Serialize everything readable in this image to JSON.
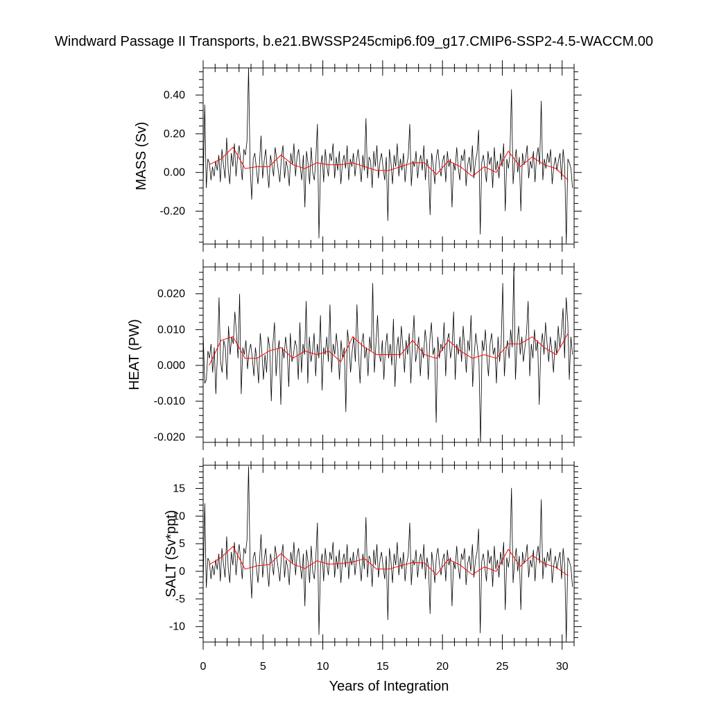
{
  "chart_data": {
    "title": "Windward Passage II Transports, b.e21.BWSSP245cmip6.f09_g17.CMIP6-SSP2-4.5-WACCM.00",
    "xlabel": "Years of Integration",
    "xlim": [
      0,
      31
    ],
    "xticks": [
      0,
      5,
      10,
      15,
      20,
      25,
      30
    ],
    "xtick_labels": [
      "0",
      "5",
      "10",
      "15",
      "20",
      "25",
      "30"
    ],
    "line_colors": {
      "monthly": "#000000",
      "annual": "#ff0000"
    },
    "panels": [
      {
        "type": "line",
        "ylabel": "MASS (Sv)",
        "ylim": [
          -0.37,
          0.54
        ],
        "yticks": [
          -0.2,
          0.0,
          0.2,
          0.4
        ],
        "ytick_labels": [
          "-0.20",
          "0.00",
          "0.20",
          "0.40"
        ],
        "monthly": [
          -0.07,
          0.35,
          -0.08,
          0.07,
          0.05,
          -0.04,
          0.03,
          -0.02,
          0.06,
          0.01,
          0.09,
          -0.05,
          0.12,
          0.04,
          -0.03,
          0.18,
          0.02,
          -0.06,
          0.1,
          0.03,
          0.15,
          -0.02,
          0.08,
          0.14,
          0.05,
          -0.04,
          0.12,
          0.09,
          0.16,
          0.54,
          0.03,
          -0.14,
          0.07,
          0.1,
          0.02,
          -0.06,
          0.05,
          0.19,
          -0.03,
          0.06,
          0.12,
          0.0,
          -0.08,
          0.09,
          0.04,
          -0.02,
          0.13,
          0.07,
          0.01,
          -0.05,
          0.08,
          0.14,
          -0.03,
          0.06,
          0.02,
          -0.07,
          0.1,
          0.04,
          0.15,
          -0.02,
          0.08,
          0.12,
          0.03,
          -0.04,
          0.09,
          -0.18,
          0.11,
          0.05,
          -0.06,
          0.13,
          0.0,
          -0.04,
          0.07,
          0.25,
          -0.34,
          0.03,
          0.09,
          -0.05,
          0.12,
          0.04,
          -0.02,
          0.1,
          0.06,
          0.15,
          -0.03,
          0.08,
          0.01,
          0.11,
          -0.06,
          0.05,
          0.09,
          0.02,
          0.14,
          -0.04,
          0.07,
          0.03,
          0.1,
          -0.02,
          0.06,
          0.12,
          0.04,
          -0.05,
          0.09,
          0.01,
          0.28,
          -0.03,
          0.08,
          0.06,
          -0.08,
          0.11,
          0.03,
          0.14,
          -0.03,
          0.06,
          0.1,
          0.02,
          -0.04,
          0.08,
          -0.25,
          0.12,
          0.05,
          -0.06,
          0.09,
          0.03,
          0.15,
          -0.02,
          0.07,
          0.01,
          0.1,
          -0.05,
          0.04,
          0.08,
          0.25,
          -0.07,
          0.06,
          0.03,
          0.11,
          -0.03,
          0.05,
          0.09,
          0.01,
          0.14,
          -0.04,
          0.07,
          0.02,
          -0.22,
          0.1,
          0.04,
          -0.06,
          0.08,
          0.12,
          0.03,
          -0.02,
          0.06,
          0.09,
          -0.05,
          0.11,
          0.03,
          0.07,
          -0.18,
          0.05,
          0.01,
          0.13,
          0.02,
          -0.04,
          0.09,
          0.06,
          0.12,
          -0.07,
          0.04,
          0.08,
          0.0,
          0.14,
          -0.03,
          0.06,
          0.1,
          0.22,
          -0.32,
          0.05,
          0.09,
          0.02,
          -0.05,
          0.11,
          0.04,
          0.08,
          -0.08,
          0.13,
          0.01,
          0.06,
          -0.03,
          0.1,
          0.03,
          0.15,
          -0.2,
          0.07,
          0.02,
          0.09,
          0.43,
          -0.06,
          0.05,
          0.12,
          0.0,
          0.08,
          -0.2,
          0.1,
          0.04,
          0.07,
          0.14,
          -0.03,
          0.06,
          0.02,
          0.11,
          -0.05,
          0.08,
          0.13,
          0.04,
          0.37,
          -0.04,
          0.07,
          0.02,
          0.1,
          0.05,
          0.12,
          -0.06,
          0.03,
          0.08,
          0.01,
          0.06,
          0.1,
          -0.04,
          0.12,
          0.03,
          -0.37,
          0.07,
          0.05,
          0.02,
          -0.08
        ],
        "annual": [
          [
            0.5,
            0.04
          ],
          [
            1.5,
            0.07
          ],
          [
            2.5,
            0.13
          ],
          [
            3.5,
            0.02
          ],
          [
            4.5,
            0.03
          ],
          [
            5.5,
            0.03
          ],
          [
            6.5,
            0.09
          ],
          [
            7.5,
            0.04
          ],
          [
            8.5,
            0.02
          ],
          [
            9.5,
            0.05
          ],
          [
            10.5,
            0.04
          ],
          [
            11.5,
            0.04
          ],
          [
            12.5,
            0.05
          ],
          [
            13.5,
            0.03
          ],
          [
            14.5,
            0.01
          ],
          [
            15.5,
            0.01
          ],
          [
            16.5,
            0.03
          ],
          [
            17.5,
            0.05
          ],
          [
            18.5,
            0.05
          ],
          [
            19.5,
            -0.01
          ],
          [
            20.5,
            0.06
          ],
          [
            21.5,
            0.03
          ],
          [
            22.5,
            -0.02
          ],
          [
            23.5,
            0.03
          ],
          [
            24.5,
            0.0
          ],
          [
            25.5,
            0.11
          ],
          [
            26.5,
            0.03
          ],
          [
            27.5,
            0.08
          ],
          [
            28.5,
            0.04
          ],
          [
            29.5,
            0.02
          ],
          [
            30.5,
            -0.04
          ]
        ]
      },
      {
        "type": "line",
        "ylabel": "HEAT (PW)",
        "ylim": [
          -0.0215,
          0.0275
        ],
        "yticks": [
          -0.02,
          -0.01,
          0.0,
          0.01,
          0.02
        ],
        "ytick_labels": [
          "-0.020",
          "-0.010",
          "0.000",
          "0.010",
          "0.020"
        ],
        "monthly": [
          0.009,
          -0.005,
          -0.004,
          0.004,
          0.002,
          0.006,
          -0.002,
          0.005,
          -0.008,
          0.003,
          0.019,
          0.001,
          -0.002,
          0.007,
          0.005,
          -0.004,
          0.011,
          0.003,
          0.008,
          0.006,
          0.015,
          0.009,
          0.002,
          0.02,
          -0.008,
          0.005,
          0.003,
          0.007,
          -0.001,
          0.004,
          0.006,
          0.002,
          -0.003,
          0.005,
          0.001,
          -0.005,
          0.009,
          0.004,
          -0.004,
          0.003,
          -0.002,
          0.008,
          0.005,
          -0.01,
          0.006,
          0.012,
          -0.003,
          0.004,
          0.007,
          -0.011,
          0.005,
          0.002,
          0.008,
          0.004,
          -0.006,
          0.009,
          0.001,
          0.003,
          0.007,
          0.005,
          -0.004,
          0.012,
          -0.002,
          0.006,
          0.003,
          0.018,
          -0.005,
          0.008,
          0.001,
          0.004,
          0.009,
          -0.003,
          0.006,
          0.002,
          0.014,
          -0.007,
          0.005,
          0.003,
          0.008,
          0.001,
          0.017,
          -0.002,
          0.006,
          0.003,
          0.009,
          0.004,
          -0.004,
          0.007,
          0.002,
          0.005,
          -0.013,
          0.01,
          0.006,
          -0.002,
          0.004,
          0.008,
          0.001,
          0.017,
          0.003,
          -0.005,
          0.006,
          0.009,
          0.002,
          0.005,
          -0.003,
          0.008,
          0.004,
          0.023,
          -0.002,
          0.006,
          0.014,
          0.003,
          0.001,
          0.007,
          -0.004,
          0.005,
          0.009,
          0.002,
          0.006,
          0.0,
          0.013,
          -0.006,
          0.004,
          0.008,
          0.002,
          0.011,
          0.005,
          -0.002,
          0.007,
          0.003,
          0.009,
          -0.005,
          0.006,
          0.014,
          0.001,
          0.004,
          0.008,
          -0.003,
          0.005,
          0.002,
          0.01,
          0.006,
          -0.004,
          0.007,
          0.012,
          0.003,
          0.005,
          -0.016,
          0.008,
          0.002,
          0.006,
          0.004,
          0.012,
          -0.003,
          0.007,
          0.009,
          0.002,
          0.005,
          0.015,
          -0.004,
          0.006,
          0.003,
          0.008,
          0.001,
          0.011,
          0.005,
          -0.002,
          0.007,
          0.004,
          0.014,
          -0.006,
          0.003,
          0.009,
          0.005,
          0.001,
          -0.022,
          0.007,
          0.004,
          0.01,
          0.002,
          -0.003,
          0.006,
          0.009,
          0.003,
          0.005,
          -0.005,
          0.008,
          0.001,
          0.006,
          0.023,
          -0.003,
          0.004,
          0.007,
          0.002,
          0.01,
          0.005,
          0.028,
          -0.004,
          0.006,
          0.011,
          0.003,
          0.008,
          0.001,
          0.005,
          0.009,
          0.018,
          -0.003,
          0.006,
          0.002,
          0.01,
          0.004,
          0.007,
          -0.011,
          0.005,
          0.009,
          0.003,
          0.012,
          0.006,
          0.001,
          0.008,
          0.004,
          -0.002,
          0.007,
          0.003,
          0.011,
          0.005,
          0.009,
          0.016,
          0.002,
          0.019,
          0.012,
          -0.004,
          0.008,
          0.003
        ],
        "annual": [
          [
            0.5,
            0.0
          ],
          [
            1.5,
            0.007
          ],
          [
            2.5,
            0.008
          ],
          [
            3.5,
            0.002
          ],
          [
            4.5,
            0.002
          ],
          [
            5.5,
            0.004
          ],
          [
            6.5,
            0.005
          ],
          [
            7.5,
            0.002
          ],
          [
            8.5,
            0.004
          ],
          [
            9.5,
            0.003
          ],
          [
            10.5,
            0.004
          ],
          [
            11.5,
            0.001
          ],
          [
            12.5,
            0.008
          ],
          [
            13.5,
            0.005
          ],
          [
            14.5,
            0.003
          ],
          [
            15.5,
            0.003
          ],
          [
            16.5,
            0.003
          ],
          [
            17.5,
            0.007
          ],
          [
            18.5,
            0.003
          ],
          [
            19.5,
            0.002
          ],
          [
            20.5,
            0.007
          ],
          [
            21.5,
            0.004
          ],
          [
            22.5,
            0.002
          ],
          [
            23.5,
            0.003
          ],
          [
            24.5,
            0.002
          ],
          [
            25.5,
            0.006
          ],
          [
            26.5,
            0.006
          ],
          [
            27.5,
            0.008
          ],
          [
            28.5,
            0.005
          ],
          [
            29.5,
            0.003
          ],
          [
            30.5,
            0.009
          ]
        ]
      },
      {
        "type": "line",
        "ylabel": "SALT (Sv*ppt)",
        "ylim": [
          -12.8,
          19.2
        ],
        "yticks": [
          -10,
          -5,
          0,
          5,
          10,
          15
        ],
        "ytick_labels": [
          "-10",
          "-5",
          "0",
          "5",
          "10",
          "15"
        ],
        "monthly": [
          -2.5,
          12.3,
          -3.0,
          2.4,
          1.8,
          -1.4,
          1.1,
          -0.7,
          2.1,
          0.3,
          3.2,
          -1.8,
          4.2,
          1.4,
          -1.1,
          6.3,
          0.7,
          -2.1,
          3.5,
          1.1,
          5.3,
          -0.7,
          2.8,
          4.9,
          1.8,
          -1.4,
          4.2,
          3.2,
          5.6,
          19.0,
          1.1,
          -4.9,
          2.5,
          3.5,
          0.7,
          -2.1,
          1.8,
          6.7,
          -1.1,
          2.1,
          4.2,
          0.0,
          -2.8,
          3.2,
          1.4,
          -0.7,
          4.6,
          2.5,
          0.4,
          -1.8,
          2.8,
          4.9,
          -1.1,
          2.1,
          0.7,
          -2.5,
          3.5,
          1.4,
          5.3,
          -0.7,
          2.8,
          4.2,
          1.1,
          -1.4,
          3.2,
          -6.3,
          3.9,
          1.8,
          -2.1,
          4.6,
          0.0,
          -1.4,
          2.5,
          8.8,
          -11.5,
          1.1,
          3.2,
          -1.8,
          4.2,
          1.4,
          -0.7,
          3.5,
          2.1,
          5.3,
          -1.1,
          2.8,
          0.4,
          3.9,
          -2.1,
          1.8,
          3.2,
          0.7,
          4.9,
          -1.4,
          2.5,
          1.1,
          3.5,
          -0.7,
          2.1,
          4.2,
          1.4,
          -1.8,
          3.2,
          0.4,
          9.8,
          -1.1,
          2.8,
          2.1,
          -2.8,
          3.9,
          1.1,
          4.9,
          -1.1,
          2.1,
          3.5,
          0.7,
          -1.4,
          2.8,
          -8.8,
          4.2,
          1.8,
          -2.1,
          3.2,
          1.1,
          5.3,
          -0.7,
          2.5,
          0.4,
          3.5,
          -1.8,
          1.4,
          2.8,
          8.8,
          -2.5,
          2.1,
          1.1,
          3.9,
          -1.1,
          1.8,
          3.2,
          0.4,
          4.9,
          -1.4,
          2.5,
          0.7,
          -7.7,
          3.5,
          1.4,
          -2.1,
          2.8,
          4.2,
          1.1,
          -0.7,
          2.1,
          3.2,
          -1.8,
          3.9,
          1.1,
          2.5,
          -6.3,
          1.8,
          0.4,
          4.6,
          0.7,
          -1.4,
          3.2,
          2.1,
          4.2,
          -2.5,
          1.4,
          2.8,
          0.0,
          4.9,
          -1.1,
          2.1,
          3.5,
          7.7,
          -11.2,
          1.8,
          3.2,
          0.7,
          -1.8,
          3.9,
          1.4,
          2.8,
          -2.8,
          4.6,
          0.4,
          2.1,
          -1.1,
          3.5,
          1.1,
          5.3,
          -7.0,
          2.5,
          0.7,
          3.2,
          15.1,
          -2.1,
          1.8,
          4.2,
          0.0,
          2.8,
          -7.0,
          3.5,
          1.4,
          2.5,
          4.9,
          -1.1,
          2.1,
          0.7,
          3.9,
          -1.8,
          2.8,
          4.6,
          1.4,
          13.0,
          -1.4,
          2.5,
          0.7,
          3.5,
          1.8,
          4.2,
          -2.1,
          1.1,
          2.8,
          0.4,
          2.1,
          3.5,
          -1.4,
          4.2,
          1.1,
          -12.8,
          2.5,
          1.8,
          0.7,
          -2.8
        ],
        "annual": [
          [
            0.5,
            1.2
          ],
          [
            1.5,
            2.5
          ],
          [
            2.5,
            4.5
          ],
          [
            3.5,
            0.4
          ],
          [
            4.5,
            1.0
          ],
          [
            5.5,
            1.2
          ],
          [
            6.5,
            3.2
          ],
          [
            7.5,
            1.3
          ],
          [
            8.5,
            0.5
          ],
          [
            9.5,
            1.9
          ],
          [
            10.5,
            1.3
          ],
          [
            11.5,
            1.4
          ],
          [
            12.5,
            1.7
          ],
          [
            13.5,
            2.3
          ],
          [
            14.5,
            0.4
          ],
          [
            15.5,
            0.4
          ],
          [
            16.5,
            1.0
          ],
          [
            17.5,
            1.6
          ],
          [
            18.5,
            1.5
          ],
          [
            19.5,
            -0.6
          ],
          [
            20.5,
            2.2
          ],
          [
            21.5,
            1.1
          ],
          [
            22.5,
            -0.6
          ],
          [
            23.5,
            0.8
          ],
          [
            24.5,
            0.0
          ],
          [
            25.5,
            4.0
          ],
          [
            26.5,
            0.9
          ],
          [
            27.5,
            2.9
          ],
          [
            28.5,
            1.4
          ],
          [
            29.5,
            0.7
          ],
          [
            30.5,
            -0.8
          ]
        ]
      }
    ]
  }
}
